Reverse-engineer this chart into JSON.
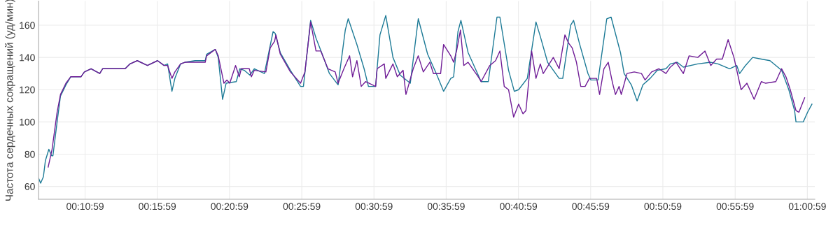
{
  "chart_data": {
    "type": "line",
    "ylabel": "Частота сердечных сокращений (уд/мин)",
    "xlim": [
      0.1295,
      1.025
    ],
    "ylim": [
      52,
      175
    ],
    "xticks": [
      {
        "value": 0.1831,
        "label": "00:10:59"
      },
      {
        "value": 0.2664,
        "label": "00:15:59"
      },
      {
        "value": 0.3497,
        "label": "00:20:59"
      },
      {
        "value": 0.4331,
        "label": "00:25:59"
      },
      {
        "value": 0.5164,
        "label": "00:30:59"
      },
      {
        "value": 0.5997,
        "label": "00:35:59"
      },
      {
        "value": 0.6831,
        "label": "00:40:59"
      },
      {
        "value": 0.7664,
        "label": "00:45:59"
      },
      {
        "value": 0.8497,
        "label": "00:50:59"
      },
      {
        "value": 0.9331,
        "label": "00:55:59"
      },
      {
        "value": 1.0164,
        "label": "01:00:59"
      }
    ],
    "yticks": [
      60,
      80,
      100,
      120,
      140,
      160
    ],
    "grid": true,
    "marker": "none",
    "line_style": "solid",
    "series": [
      {
        "color": "#1c7a96",
        "x": [
          0.1295,
          0.1318,
          0.135,
          0.1373,
          0.1413,
          0.1445,
          0.146,
          0.1508,
          0.1547,
          0.161,
          0.1665,
          0.1783,
          0.1823,
          0.19,
          0.2,
          0.2033,
          0.2293,
          0.235,
          0.2433,
          0.255,
          0.2667,
          0.2742,
          0.2783,
          0.2833,
          0.2867,
          0.2933,
          0.2983,
          0.31,
          0.3217,
          0.3233,
          0.3333,
          0.3367,
          0.3417,
          0.3458,
          0.3575,
          0.3617,
          0.3667,
          0.3733,
          0.3783,
          0.39,
          0.395,
          0.4,
          0.4023,
          0.4083,
          0.42,
          0.4317,
          0.435,
          0.4433,
          0.4495,
          0.4567,
          0.465,
          0.475,
          0.4833,
          0.4867,
          0.4967,
          0.505,
          0.51,
          0.5183,
          0.5233,
          0.53,
          0.5383,
          0.5467,
          0.5583,
          0.5675,
          0.5783,
          0.5883,
          0.5967,
          0.605,
          0.6083,
          0.6133,
          0.6167,
          0.625,
          0.6367,
          0.64,
          0.6483,
          0.6583,
          0.6617,
          0.6717,
          0.6783,
          0.6833,
          0.6933,
          0.7033,
          0.7083,
          0.7167,
          0.73,
          0.7342,
          0.7433,
          0.7467,
          0.7533,
          0.7633,
          0.7667,
          0.775,
          0.785,
          0.79,
          0.8008,
          0.805,
          0.8133,
          0.82,
          0.8267,
          0.835,
          0.8433,
          0.8533,
          0.8583,
          0.8662,
          0.8733,
          0.89,
          0.905,
          0.9133,
          0.9267,
          0.935,
          0.9383,
          0.945,
          0.9533,
          0.9633,
          0.9733,
          0.9867,
          0.995,
          1.0017,
          1.0033,
          1.0117,
          1.0167,
          1.0217
        ],
        "values": [
          65,
          62,
          66,
          76,
          83,
          79,
          79,
          100,
          116,
          123,
          128,
          128,
          131,
          133,
          130,
          133,
          133,
          136,
          138,
          135,
          138,
          135,
          136,
          119,
          127,
          136,
          137,
          138,
          138,
          142,
          145,
          140,
          114,
          124,
          125,
          133,
          132,
          129,
          133,
          130,
          143,
          156,
          155,
          143,
          132,
          122,
          122,
          163,
          152,
          142,
          130,
          123,
          157,
          164,
          148,
          133,
          122,
          122,
          154,
          166,
          140,
          129,
          124,
          164,
          142,
          130,
          119,
          127,
          128,
          156,
          163,
          143,
          129,
          125,
          125,
          165,
          165,
          132,
          119,
          120,
          127,
          162,
          153,
          137,
          127,
          127,
          160,
          163,
          149,
          130,
          126,
          126,
          164,
          165,
          143,
          130,
          123,
          113,
          123,
          127,
          132,
          133,
          136,
          137,
          134,
          136,
          137,
          136,
          133,
          135,
          130,
          135,
          140,
          139,
          138,
          132,
          120,
          107,
          100,
          100,
          106,
          111
        ]
      },
      {
        "color": "#6f1c96",
        "x": [
          0.1405,
          0.145,
          0.1508,
          0.1547,
          0.161,
          0.1665,
          0.1783,
          0.1823,
          0.19,
          0.2,
          0.2033,
          0.2293,
          0.235,
          0.2433,
          0.255,
          0.2667,
          0.2742,
          0.2783,
          0.2833,
          0.2867,
          0.2933,
          0.2983,
          0.31,
          0.3217,
          0.3233,
          0.3333,
          0.3367,
          0.3433,
          0.3467,
          0.35,
          0.3567,
          0.361,
          0.3633,
          0.3725,
          0.375,
          0.3783,
          0.3917,
          0.3967,
          0.4017,
          0.4033,
          0.4083,
          0.42,
          0.4317,
          0.4367,
          0.4433,
          0.4495,
          0.455,
          0.4633,
          0.4717,
          0.475,
          0.4817,
          0.4883,
          0.4917,
          0.4967,
          0.5017,
          0.5067,
          0.5183,
          0.52,
          0.5283,
          0.53,
          0.5383,
          0.5433,
          0.55,
          0.5533,
          0.5617,
          0.5675,
          0.5733,
          0.5808,
          0.585,
          0.5933,
          0.5967,
          0.605,
          0.6083,
          0.6117,
          0.6162,
          0.62,
          0.625,
          0.6367,
          0.64,
          0.65,
          0.6567,
          0.6617,
          0.6667,
          0.6717,
          0.6775,
          0.6833,
          0.6883,
          0.6917,
          0.6983,
          0.7033,
          0.7083,
          0.7117,
          0.7233,
          0.73,
          0.7367,
          0.7408,
          0.745,
          0.75,
          0.755,
          0.76,
          0.765,
          0.7733,
          0.7767,
          0.7817,
          0.7867,
          0.7917,
          0.795,
          0.7992,
          0.8017,
          0.8083,
          0.8167,
          0.825,
          0.8292,
          0.8367,
          0.845,
          0.8533,
          0.8583,
          0.865,
          0.8733,
          0.88,
          0.89,
          0.8983,
          0.905,
          0.9117,
          0.9183,
          0.925,
          0.9317,
          0.94,
          0.9467,
          0.955,
          0.9633,
          0.9683,
          0.98,
          0.9867,
          0.9917,
          0.9967,
          1.0033,
          1.0067,
          1.0133
        ],
        "values": [
          72,
          83,
          106,
          117,
          124,
          128,
          128,
          131,
          133,
          130,
          133,
          133,
          136,
          138,
          135,
          138,
          135,
          135,
          127,
          131,
          136,
          137,
          137,
          137,
          141,
          145,
          141,
          124,
          126,
          124,
          135,
          128,
          133,
          133,
          128,
          132,
          131,
          146,
          150,
          154,
          142,
          131,
          124,
          131,
          162,
          144,
          144,
          133,
          131,
          124,
          133,
          141,
          128,
          138,
          122,
          125,
          122,
          133,
          136,
          127,
          136,
          128,
          132,
          117,
          133,
          141,
          131,
          137,
          130,
          130,
          148,
          141,
          137,
          144,
          157,
          135,
          137,
          128,
          125,
          135,
          138,
          144,
          122,
          120,
          103,
          111,
          105,
          107,
          144,
          127,
          136,
          130,
          140,
          133,
          154,
          149,
          146,
          137,
          122,
          122,
          127,
          127,
          117,
          133,
          137,
          124,
          117,
          122,
          117,
          130,
          131,
          130,
          126,
          131,
          133,
          130,
          134,
          137,
          130,
          141,
          140,
          144,
          135,
          139,
          139,
          151,
          140,
          120,
          124,
          114,
          125,
          124,
          125,
          133,
          128,
          120,
          107,
          106,
          115
        ]
      }
    ]
  }
}
